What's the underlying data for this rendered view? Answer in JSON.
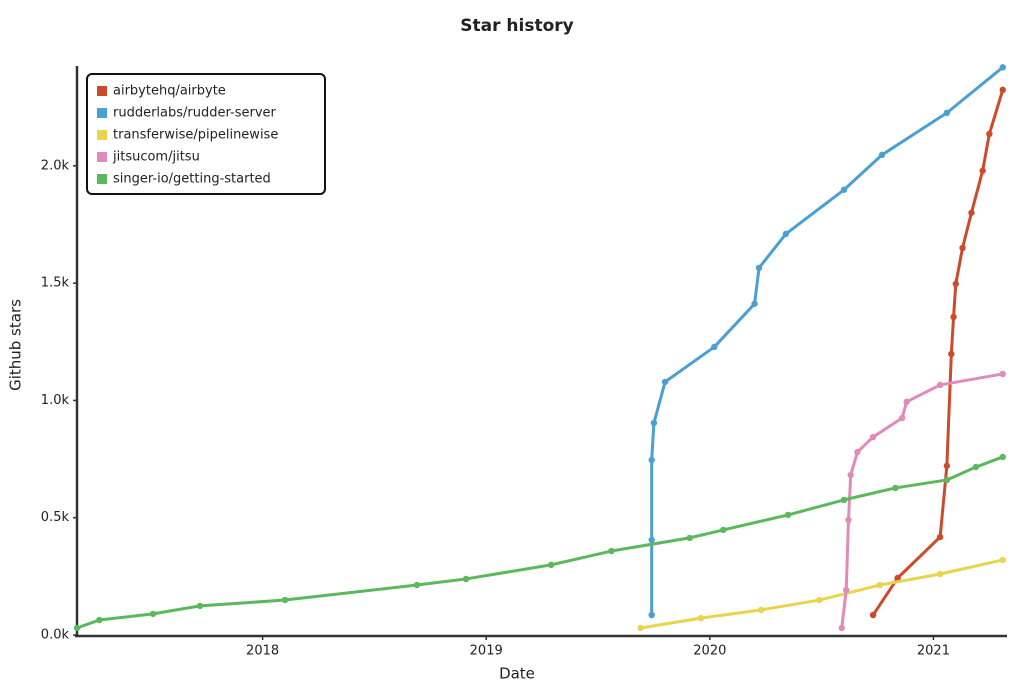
{
  "chart_data": {
    "type": "line",
    "title": "Star history",
    "x_label": "Date",
    "y_label": "Github stars",
    "xlim": [
      2017.17,
      2021.32
    ],
    "xticks": [
      2018,
      2019,
      2020,
      2021
    ],
    "ylim": [
      0,
      2430
    ],
    "yticks": [
      {
        "value": 0,
        "label": "0.0k"
      },
      {
        "value": 500,
        "label": "0.5k"
      },
      {
        "value": 1000,
        "label": "1.0k"
      },
      {
        "value": 1500,
        "label": "1.5k"
      },
      {
        "value": 2000,
        "label": "2.0k"
      }
    ],
    "legend": "upper left",
    "series": [
      {
        "name": "airbytehq/airbyte",
        "color": "#cc4b2b",
        "x": [
          2020.73,
          2020.84,
          2021.03,
          2021.06,
          2021.08,
          2021.09,
          2021.1,
          2021.13,
          2021.17,
          2021.22,
          2021.25,
          2021.31
        ],
        "values": [
          85,
          243,
          418,
          721,
          1198,
          1356,
          1497,
          1650,
          1800,
          1979,
          2136,
          2324
        ]
      },
      {
        "name": "rudderlabs/rudder-server",
        "color": "#4a9fd4",
        "x": [
          2019.74,
          2019.74,
          2019.74,
          2019.75,
          2019.8,
          2020.02,
          2020.2,
          2020.22,
          2020.34,
          2020.6,
          2020.77,
          2021.06,
          2021.31
        ],
        "values": [
          85,
          405,
          746,
          904,
          1079,
          1228,
          1412,
          1565,
          1710,
          1898,
          2047,
          2226,
          2420
        ]
      },
      {
        "name": "transferwise/pipelinewise",
        "color": "#e8d44d",
        "x": [
          2019.69,
          2019.96,
          2020.23,
          2020.49,
          2020.76,
          2021.03,
          2021.31
        ],
        "values": [
          30,
          72,
          107,
          149,
          213,
          260,
          320
        ]
      },
      {
        "name": "jitsucom/jitsu",
        "color": "#e08bb8",
        "x": [
          2020.59,
          2020.61,
          2020.62,
          2020.63,
          2020.66,
          2020.73,
          2020.86,
          2020.88,
          2021.03,
          2021.31
        ],
        "values": [
          30,
          192,
          490,
          682,
          780,
          844,
          925,
          994,
          1066,
          1113
        ]
      },
      {
        "name": "singer-io/getting-started",
        "color": "#5cb85c",
        "x": [
          2017.17,
          2017.27,
          2017.51,
          2017.72,
          2018.1,
          2018.69,
          2018.91,
          2019.29,
          2019.56,
          2019.91,
          2020.06,
          2020.35,
          2020.6,
          2020.83,
          2021.06,
          2021.19,
          2021.31
        ],
        "values": [
          30,
          64,
          90,
          124,
          149,
          213,
          239,
          299,
          358,
          414,
          448,
          512,
          576,
          627,
          661,
          716,
          759
        ]
      }
    ]
  }
}
